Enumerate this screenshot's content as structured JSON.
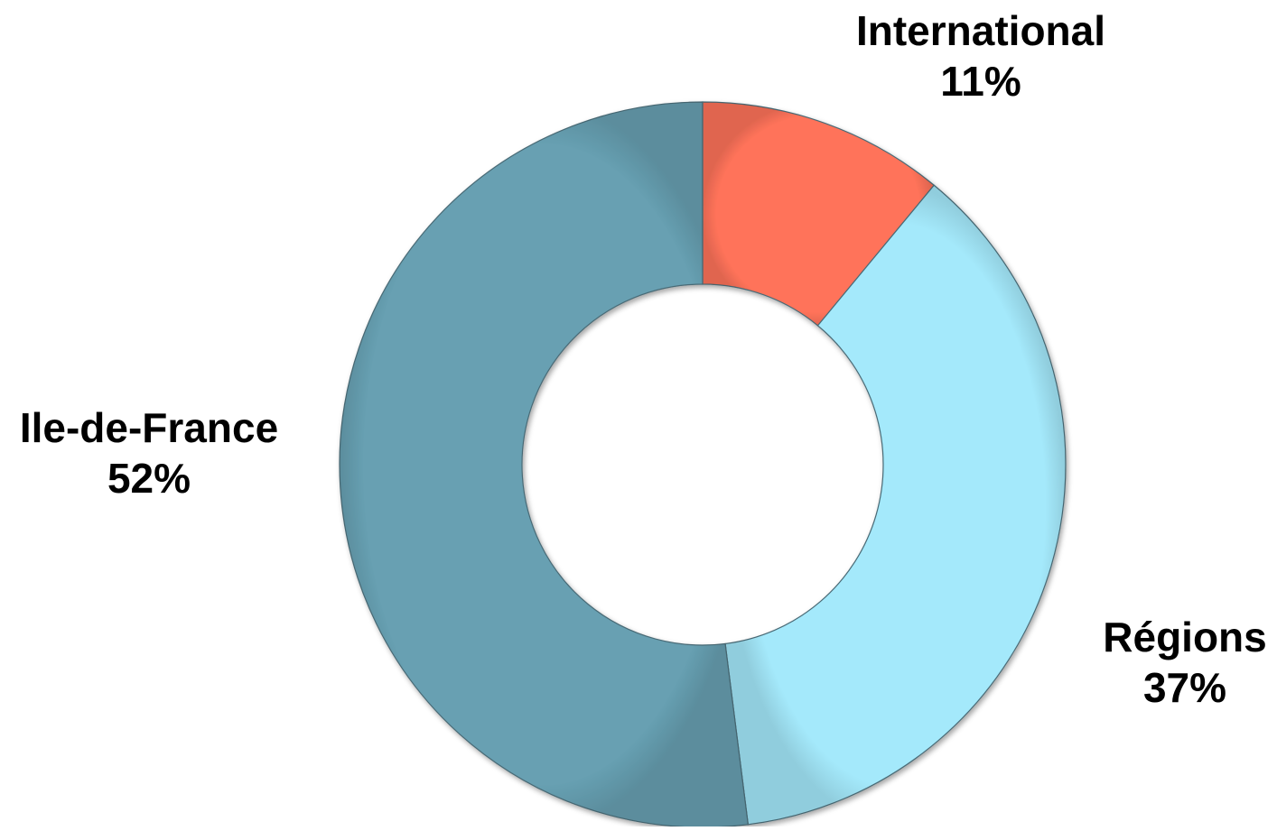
{
  "chart_data": {
    "type": "pie",
    "variant": "donut",
    "title": "",
    "legend": "none",
    "slices": [
      {
        "label": "International",
        "value": 11,
        "value_label": "11%",
        "color": "#FF735A"
      },
      {
        "label": "Régions",
        "value": 37,
        "value_label": "37%",
        "color": "#A4E9FB"
      },
      {
        "label": "Ile-de-France",
        "value": 52,
        "value_label": "52%",
        "color": "#67A0B2"
      }
    ]
  }
}
